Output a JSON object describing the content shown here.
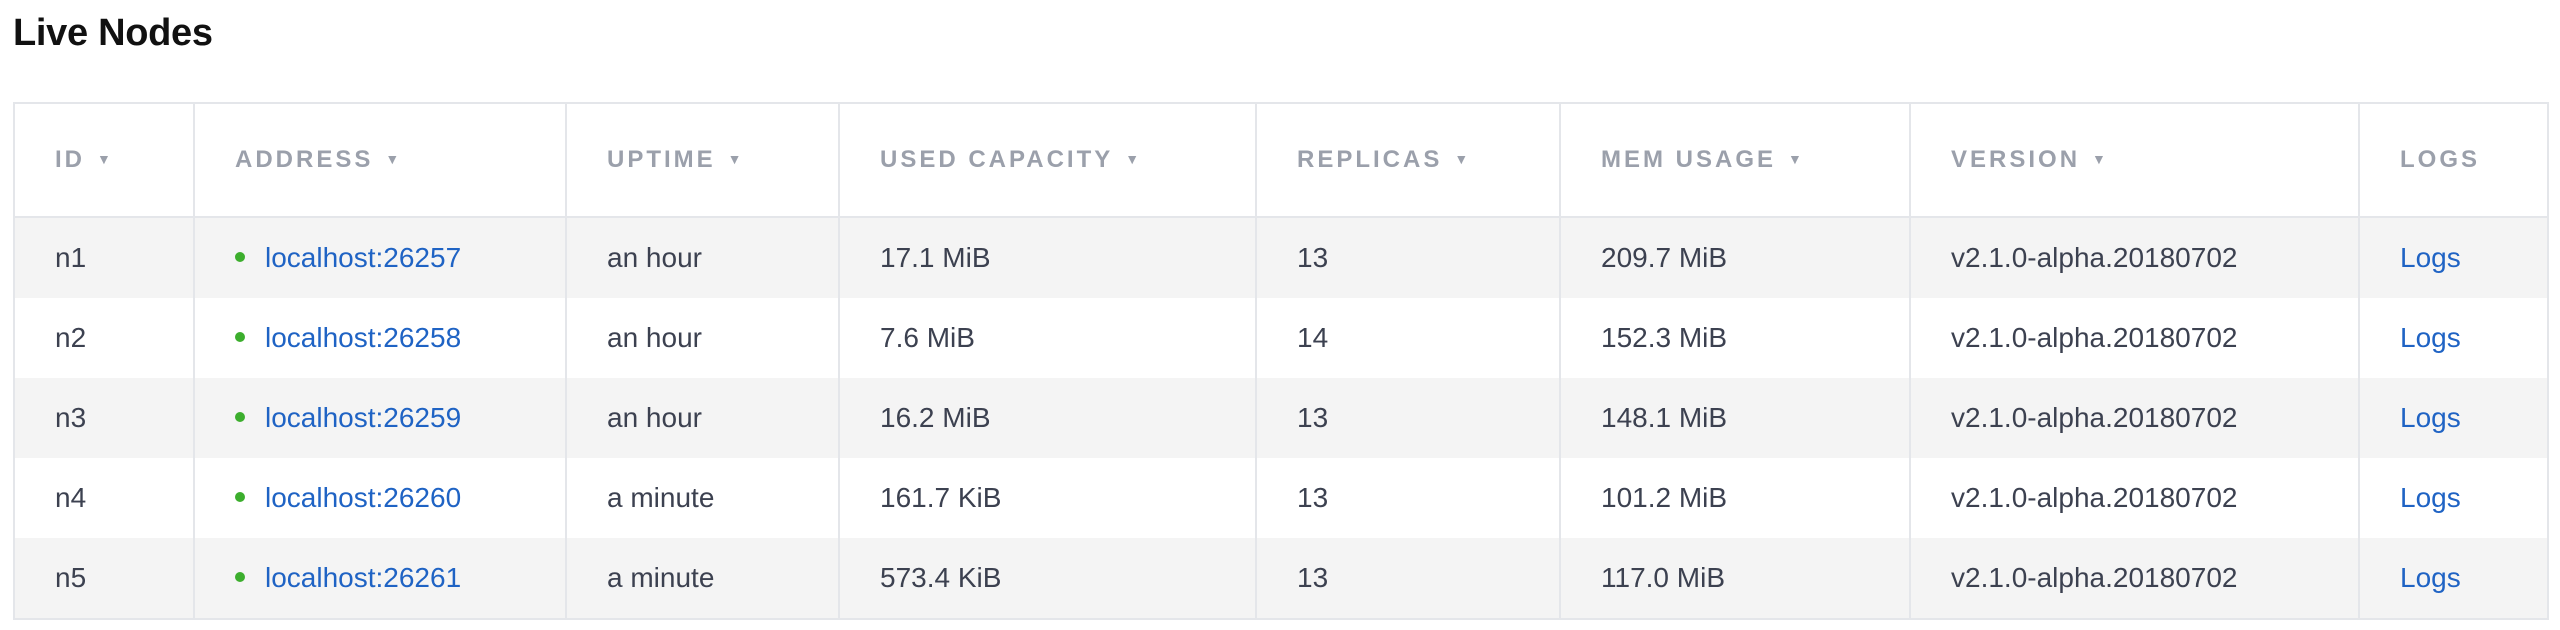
{
  "page": {
    "title": "Live Nodes"
  },
  "columns": [
    {
      "label": "ID",
      "sort_icon": "▼"
    },
    {
      "label": "ADDRESS",
      "sort_icon": "▼"
    },
    {
      "label": "UPTIME",
      "sort_icon": "▼"
    },
    {
      "label": "USED CAPACITY",
      "sort_icon": "▼"
    },
    {
      "label": "REPLICAS",
      "sort_icon": "▼"
    },
    {
      "label": "MEM USAGE",
      "sort_icon": "▼"
    },
    {
      "label": "VERSION",
      "sort_icon": "▼"
    },
    {
      "label": "LOGS"
    }
  ],
  "colors": {
    "status_live": "#3cae2d",
    "link": "#1f63c4",
    "row_stripe": "#f4f4f4"
  },
  "rows": [
    {
      "id": "n1",
      "address": "localhost:26257",
      "uptime": "an hour",
      "used_capacity": "17.1 MiB",
      "replicas": "13",
      "mem_usage": "209.7 MiB",
      "version": "v2.1.0-alpha.20180702",
      "logs": "Logs"
    },
    {
      "id": "n2",
      "address": "localhost:26258",
      "uptime": "an hour",
      "used_capacity": "7.6 MiB",
      "replicas": "14",
      "mem_usage": "152.3 MiB",
      "version": "v2.1.0-alpha.20180702",
      "logs": "Logs"
    },
    {
      "id": "n3",
      "address": "localhost:26259",
      "uptime": "an hour",
      "used_capacity": "16.2 MiB",
      "replicas": "13",
      "mem_usage": "148.1 MiB",
      "version": "v2.1.0-alpha.20180702",
      "logs": "Logs"
    },
    {
      "id": "n4",
      "address": "localhost:26260",
      "uptime": "a minute",
      "used_capacity": "161.7 KiB",
      "replicas": "13",
      "mem_usage": "101.2 MiB",
      "version": "v2.1.0-alpha.20180702",
      "logs": "Logs"
    },
    {
      "id": "n5",
      "address": "localhost:26261",
      "uptime": "a minute",
      "used_capacity": "573.4 KiB",
      "replicas": "13",
      "mem_usage": "117.0 MiB",
      "version": "v2.1.0-alpha.20180702",
      "logs": "Logs"
    }
  ]
}
